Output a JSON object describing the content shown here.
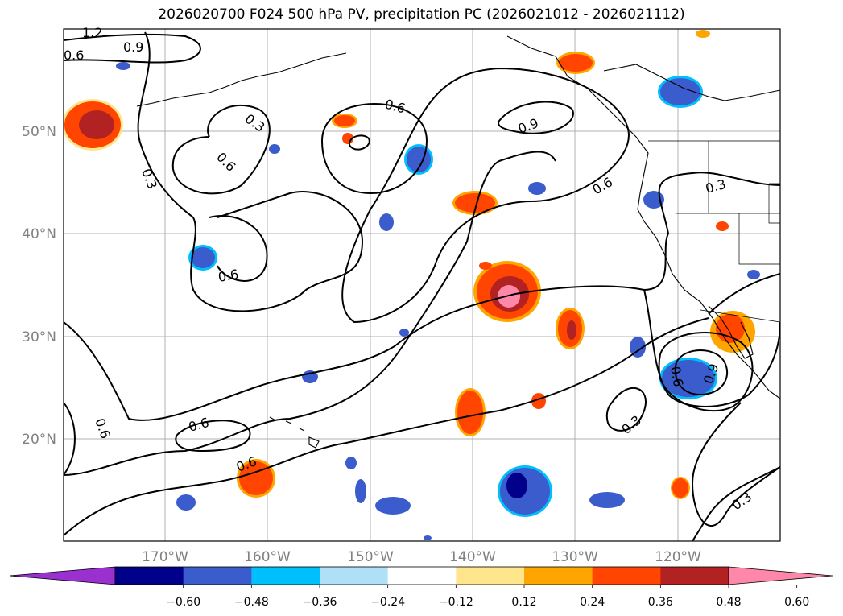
{
  "title": "2026020700 F024 500 hPa PV, precipitation PC (2026021012 - 2026021112)",
  "chart_data": {
    "type": "map",
    "title": "2026020700 F024 500 hPa PV, precipitation PC (2026021012 - 2026021112)",
    "x_ticks": [
      "170°W",
      "160°W",
      "150°W",
      "140°W",
      "130°W",
      "120°W"
    ],
    "y_ticks": [
      "50°N",
      "40°N",
      "30°N",
      "20°N"
    ],
    "colorbar": {
      "tick_labels": [
        "−0.60",
        "−0.48",
        "−0.36",
        "−0.24",
        "−0.12",
        "0.12",
        "0.24",
        "0.36",
        "0.48",
        "0.60"
      ],
      "colors": [
        "#9b30d0",
        "#00008b",
        "#3a5ccc",
        "#00bfff",
        "#b0e0f8",
        "#ffffff",
        "#ffe68c",
        "#ffa500",
        "#ff4500",
        "#b22222",
        "#ff88aa"
      ]
    },
    "contour_labels": [
      "1.2",
      "0.9",
      "0.6",
      "0.3",
      "0.6",
      "0.3",
      "0.6",
      "0.6",
      "0.9",
      "0.6",
      "0.3",
      "0.6",
      "0.6",
      "0.6",
      "0.9",
      "0.3",
      "0.6",
      "0.3",
      "0.3"
    ]
  }
}
